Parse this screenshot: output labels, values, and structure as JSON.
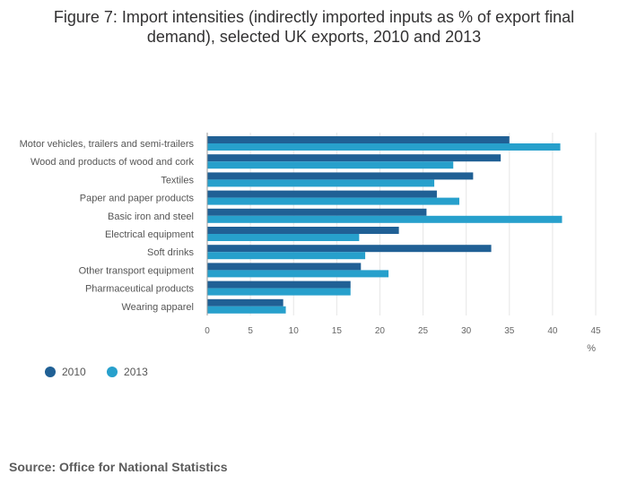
{
  "title_line1": "Figure 7: Import intensities (indirectly imported inputs as % of export final",
  "title_line2": "demand), selected UK exports, 2010 and 2013",
  "source": "Source: Office for National Statistics",
  "colors": {
    "s2010": "#206095",
    "s2013": "#27a0cc",
    "grid": "#e6e6e6",
    "axis": "#666666"
  },
  "chart_data": {
    "type": "bar",
    "orientation": "horizontal",
    "categories": [
      "Motor vehicles, trailers and semi-trailers",
      "Wood and products of wood and cork",
      "Textiles",
      "Paper and paper products",
      "Basic iron and steel",
      "Electrical equipment",
      "Soft drinks",
      "Other transport equipment",
      "Pharmaceutical products",
      "Wearing apparel"
    ],
    "series": [
      {
        "name": "2010",
        "values": [
          35.0,
          34.0,
          30.8,
          26.6,
          25.4,
          22.2,
          32.9,
          17.8,
          16.6,
          8.8
        ]
      },
      {
        "name": "2013",
        "values": [
          40.9,
          28.5,
          26.3,
          29.2,
          41.1,
          17.6,
          18.3,
          21.0,
          16.6,
          9.1
        ]
      }
    ],
    "xlim": [
      0,
      45
    ],
    "xticks": [
      "0",
      "5",
      "10",
      "15",
      "20",
      "25",
      "30",
      "35",
      "40",
      "45"
    ],
    "xlabel": "%",
    "legend_position": "bottom-left",
    "grid": true
  }
}
